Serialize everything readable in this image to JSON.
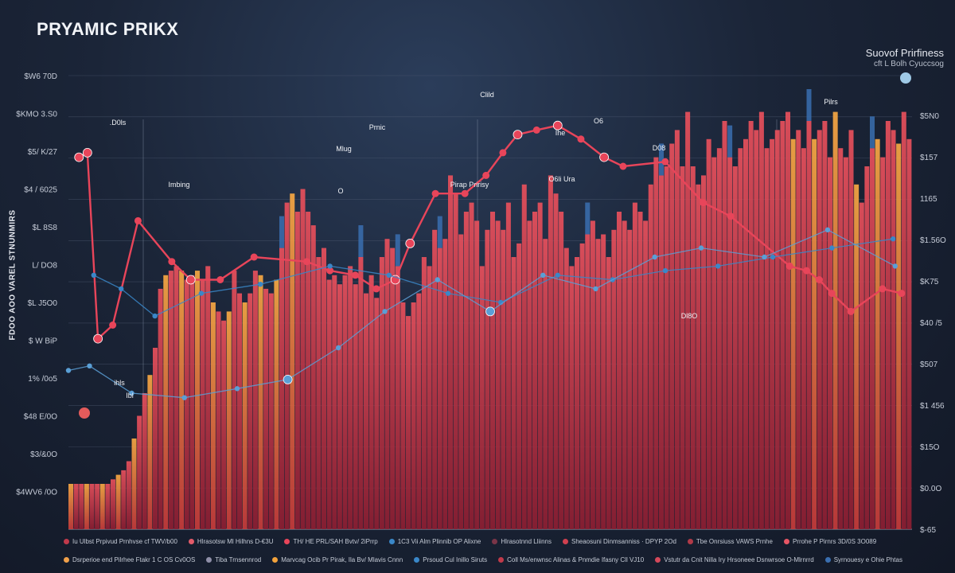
{
  "chart_data": {
    "type": "bar",
    "title": "PRYAMIC PRIKX",
    "subtitle": [
      "Suovof Prirfiness",
      "cft L Bolh Cyuccsog"
    ],
    "xlabel": "",
    "ylabel": "FDOO AOO VAREL STNUNMIRS",
    "left_ticks": [
      "$W6 70D",
      "$KMO 3.S0",
      "$5/ K/27",
      "$4 / 6025",
      "$L 8S8",
      "L/ DO8",
      "$L J5O0",
      "$ W BiP",
      "1% /0o5",
      "$48 E/0O",
      "$3/&0O",
      "$4WV6 /0O"
    ],
    "right_ticks": [
      "$5N0",
      "$157",
      "1165",
      "$1.56O",
      "$K75",
      "$40 /5",
      "$507",
      "$1 456",
      "$15O",
      "$0.0O",
      "$-65"
    ],
    "y_range": [
      0,
      100
    ],
    "grid": true,
    "bar_series": {
      "name": "",
      "values": [
        10,
        10,
        10,
        10,
        10,
        10,
        10,
        10,
        11,
        12,
        13,
        15,
        20,
        25,
        30,
        34,
        40,
        53,
        56,
        57,
        58,
        57,
        55,
        56,
        57,
        55,
        58,
        50,
        48,
        46,
        48,
        57,
        52,
        50,
        52,
        57,
        56,
        53,
        52,
        55,
        62,
        72,
        74,
        70,
        75,
        70,
        67,
        60,
        62,
        55,
        56,
        54,
        56,
        58,
        54,
        60,
        52,
        56,
        51,
        60,
        64,
        62,
        58,
        50,
        47,
        50,
        52,
        60,
        58,
        66,
        62,
        64,
        78,
        74,
        65,
        70,
        72,
        68,
        58,
        66,
        70,
        68,
        66,
        72,
        60,
        63,
        76,
        68,
        70,
        72,
        64,
        78,
        74,
        70,
        62,
        58,
        60,
        63,
        65,
        68,
        64,
        65,
        60,
        66,
        70,
        68,
        66,
        72,
        70,
        68,
        76,
        82,
        78,
        80,
        85,
        88,
        80,
        92,
        80,
        76,
        78,
        86,
        82,
        84,
        90,
        82,
        80,
        84,
        86,
        90,
        88,
        92,
        84,
        86,
        88,
        90,
        92,
        86,
        88,
        84,
        90,
        86,
        88,
        90,
        82,
        92,
        84,
        82,
        88,
        76,
        72,
        80,
        84,
        86,
        82,
        90,
        88,
        85,
        92,
        86
      ],
      "highlight_indices": [
        40,
        55,
        62,
        70,
        98,
        112,
        125,
        140,
        152
      ]
    },
    "line_series": [
      {
        "name": "",
        "color": "#e8455a",
        "x": [
          5,
          9,
          14,
          21,
          33,
          49,
          58,
          72,
          88,
          113,
          124,
          136,
          146,
          155,
          162,
          174,
          188,
          198,
          206,
          213,
          222,
          232,
          243,
          254,
          263,
          283,
          301,
          314,
          342,
          350,
          356,
          362,
          371,
          386,
          395
        ],
        "y": [
          82,
          83,
          42,
          45,
          68,
          59,
          55,
          55,
          60,
          59,
          57,
          56,
          53,
          55,
          63,
          74,
          74,
          78,
          83,
          87,
          88,
          89,
          86,
          82,
          80,
          81,
          72,
          69,
          58,
          57,
          55,
          52,
          48,
          53,
          52
        ],
        "highlight": [
          0,
          1,
          2,
          6,
          13,
          14,
          19,
          21,
          23
        ]
      },
      {
        "name": "",
        "color": "#3a87c8",
        "x": [
          12,
          25,
          41,
          63,
          91,
          124,
          152,
          180,
          205,
          232,
          258,
          283,
          308,
          334,
          362,
          391
        ],
        "y": [
          56,
          53,
          47,
          52,
          54,
          58,
          56,
          52,
          50,
          56,
          55,
          57,
          58,
          60,
          62,
          64
        ],
        "highlight": []
      },
      {
        "name": "",
        "color": "#5a9fd6",
        "x": [
          0,
          10,
          30,
          55,
          80,
          104,
          128,
          150,
          175,
          200,
          225,
          250,
          278,
          300,
          330,
          360,
          392
        ],
        "y": [
          35,
          36,
          30,
          29,
          31,
          33,
          40,
          48,
          55,
          48,
          56,
          53,
          60,
          62,
          60,
          66,
          58
        ],
        "highlight": [
          5,
          9
        ]
      }
    ],
    "annotations": [
      "Clild",
      "O6",
      "Prnic",
      "Ihe",
      "D08",
      "Mlug",
      "Pilrs",
      ".D0ls",
      "Imbing",
      "O",
      "Pirap Pririsy",
      "O6li Ura",
      "Dl8O",
      "ihls",
      "Ibl"
    ],
    "legend": [
      {
        "label": "Iu Ulbst Prpivud Prnhvse cf TWV/b00",
        "color": "#c0394b"
      },
      {
        "label": "Hlrasotsw Ml Hilhns D-€3U",
        "color": "#e35b6a"
      },
      {
        "label": "TH/ HE PRL/SAH Bvtv/ 2iPrrp",
        "color": "#e8455a"
      },
      {
        "label": "1C3 Vii Alm Plinnib OP Alixne",
        "color": "#3a87c8"
      },
      {
        "label": "Hlrasotnnd Lliinns",
        "color": "#7a3548"
      },
      {
        "label": "Sheaosuni Dinmsanniss · DPYP 2Od",
        "color": "#d0404f"
      },
      {
        "label": "Tbe Onrsiuss VAWS Prnhe",
        "color": "#b13a48"
      },
      {
        "label": "Prrohe P Pirnrs 3D/0S 3O089",
        "color": "#e65564"
      },
      {
        "label": "Dsrperioe end Pilrhee Ftakr 1 C OS Cv0OS",
        "color": "#f0a04a"
      },
      {
        "label": "Tiba Trnsennrod",
        "color": "#8f8fa8"
      },
      {
        "label": "Marvcag Ocib Pr Pirak, Ila Bv/ Mlavis Cnnn",
        "color": "#f2a23c"
      },
      {
        "label": "Prsoud Cul Inillo Siruts",
        "color": "#3a87c8"
      },
      {
        "label": "Coll Ms/enwnsc Alinas & Pnmdie Ifasny Cll VJ10",
        "color": "#c03a4a"
      },
      {
        "label": "Vstutr da Cnit Nilla Iry Hrsoneee Dsnwrsoe O-Mlrnrrd",
        "color": "#d4485a"
      },
      {
        "label": "Syrnouesy e Ohie Phtas",
        "color": "#3a6fb0"
      }
    ]
  }
}
